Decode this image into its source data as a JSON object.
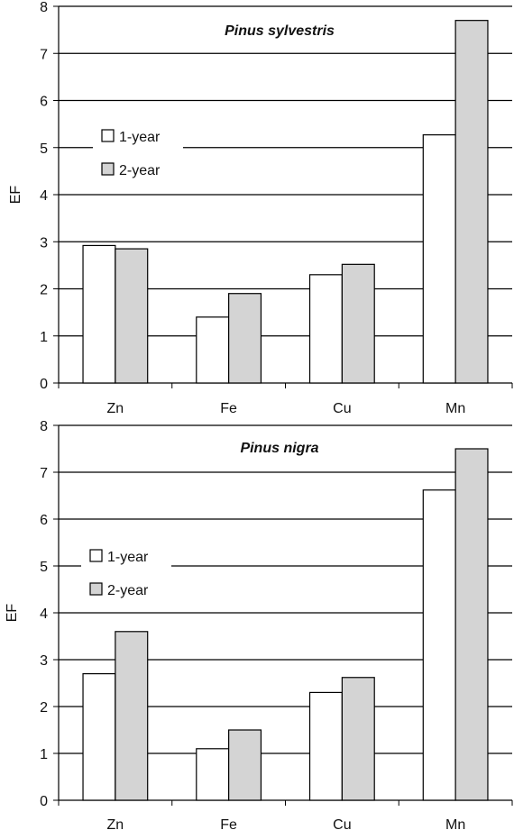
{
  "chart_data": [
    {
      "type": "bar",
      "title": "Pinus sylvestris",
      "ylabel": "EF",
      "xlabel": "",
      "ylim": [
        0,
        8
      ],
      "yticks": [
        "0",
        "1",
        "2",
        "3",
        "4",
        "5",
        "6",
        "7",
        "8"
      ],
      "categories": [
        "Zn",
        "Fe",
        "Cu",
        "Mn"
      ],
      "series": [
        {
          "name": "1-year",
          "values": [
            2.92,
            1.4,
            2.3,
            5.27
          ],
          "color": "#ffffff"
        },
        {
          "name": "2-year",
          "values": [
            2.85,
            1.9,
            2.52,
            7.7
          ],
          "color": "#d4d4d4"
        }
      ],
      "grid": true,
      "legend": "left"
    },
    {
      "type": "bar",
      "title": "Pinus nigra",
      "ylabel": "EF",
      "xlabel": "",
      "ylim": [
        0,
        8
      ],
      "yticks": [
        "0",
        "1",
        "2",
        "3",
        "4",
        "5",
        "6",
        "7",
        "8"
      ],
      "categories": [
        "Zn",
        "Fe",
        "Cu",
        "Mn"
      ],
      "series": [
        {
          "name": "1-year",
          "values": [
            2.7,
            1.1,
            2.3,
            6.62
          ],
          "color": "#ffffff"
        },
        {
          "name": "2-year",
          "values": [
            3.6,
            1.5,
            2.62,
            7.5
          ],
          "color": "#d4d4d4"
        }
      ],
      "grid": true,
      "legend": "left"
    }
  ]
}
